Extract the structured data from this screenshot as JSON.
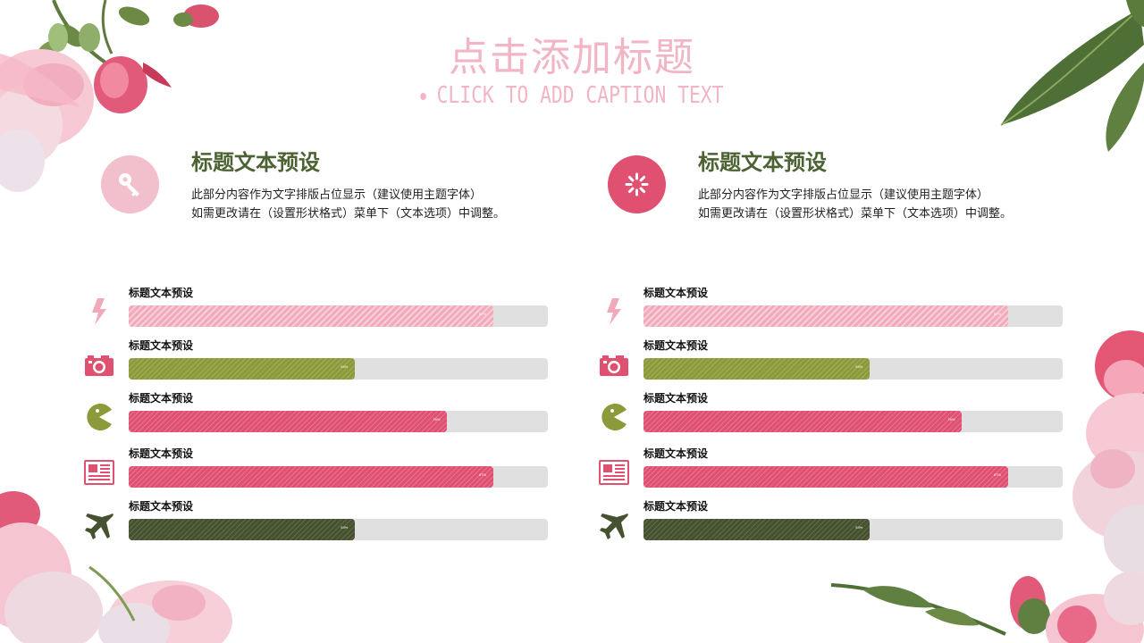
{
  "header": {
    "title": "点击添加标题",
    "subtitle": "CLICK TO ADD CAPTION TEXT"
  },
  "colors": {
    "pink": "#f2aabb",
    "light_pink_circle": "#f2c0cc",
    "red": "#e05070",
    "olive": "#8d9a3a",
    "dark_olive": "#46512f",
    "heading_green": "#4c6233"
  },
  "features": [
    {
      "title": "标题文本预设",
      "line1": "此部分内容作为文字排版占位显示（建议使用主题字体）",
      "line2": "如需更改请在（设置形状格式）菜单下（文本选项）中调整。",
      "icon": "key-icon"
    },
    {
      "title": "标题文本预设",
      "line1": "此部分内容作为文字排版占位显示（建议使用主题字体）",
      "line2": "如需更改请在（设置形状格式）菜单下（文本选项）中调整。",
      "icon": "loading-spinner-icon"
    }
  ],
  "bar_groups": [
    {
      "rows": [
        {
          "label": "标题文本预设",
          "value": 0.87,
          "pct": "87%",
          "icon": "lightning-icon"
        },
        {
          "label": "标题文本预设",
          "value": 0.54,
          "pct": "54%",
          "icon": "camera-icon"
        },
        {
          "label": "标题文本预设",
          "value": 0.76,
          "pct": "76%",
          "icon": "pacman-icon"
        },
        {
          "label": "标题文本预设",
          "value": 0.87,
          "pct": "87%",
          "icon": "newspaper-icon"
        },
        {
          "label": "标题文本预设",
          "value": 0.54,
          "pct": "54%",
          "icon": "airplane-icon"
        }
      ]
    },
    {
      "rows": [
        {
          "label": "标题文本预设",
          "value": 0.87,
          "pct": "87%",
          "icon": "lightning-icon"
        },
        {
          "label": "标题文本预设",
          "value": 0.54,
          "pct": "54%",
          "icon": "camera-icon"
        },
        {
          "label": "标题文本预设",
          "value": 0.76,
          "pct": "76%",
          "icon": "pacman-icon"
        },
        {
          "label": "标题文本预设",
          "value": 0.87,
          "pct": "87%",
          "icon": "newspaper-icon"
        },
        {
          "label": "标题文本预设",
          "value": 0.54,
          "pct": "54%",
          "icon": "airplane-icon"
        }
      ]
    }
  ]
}
